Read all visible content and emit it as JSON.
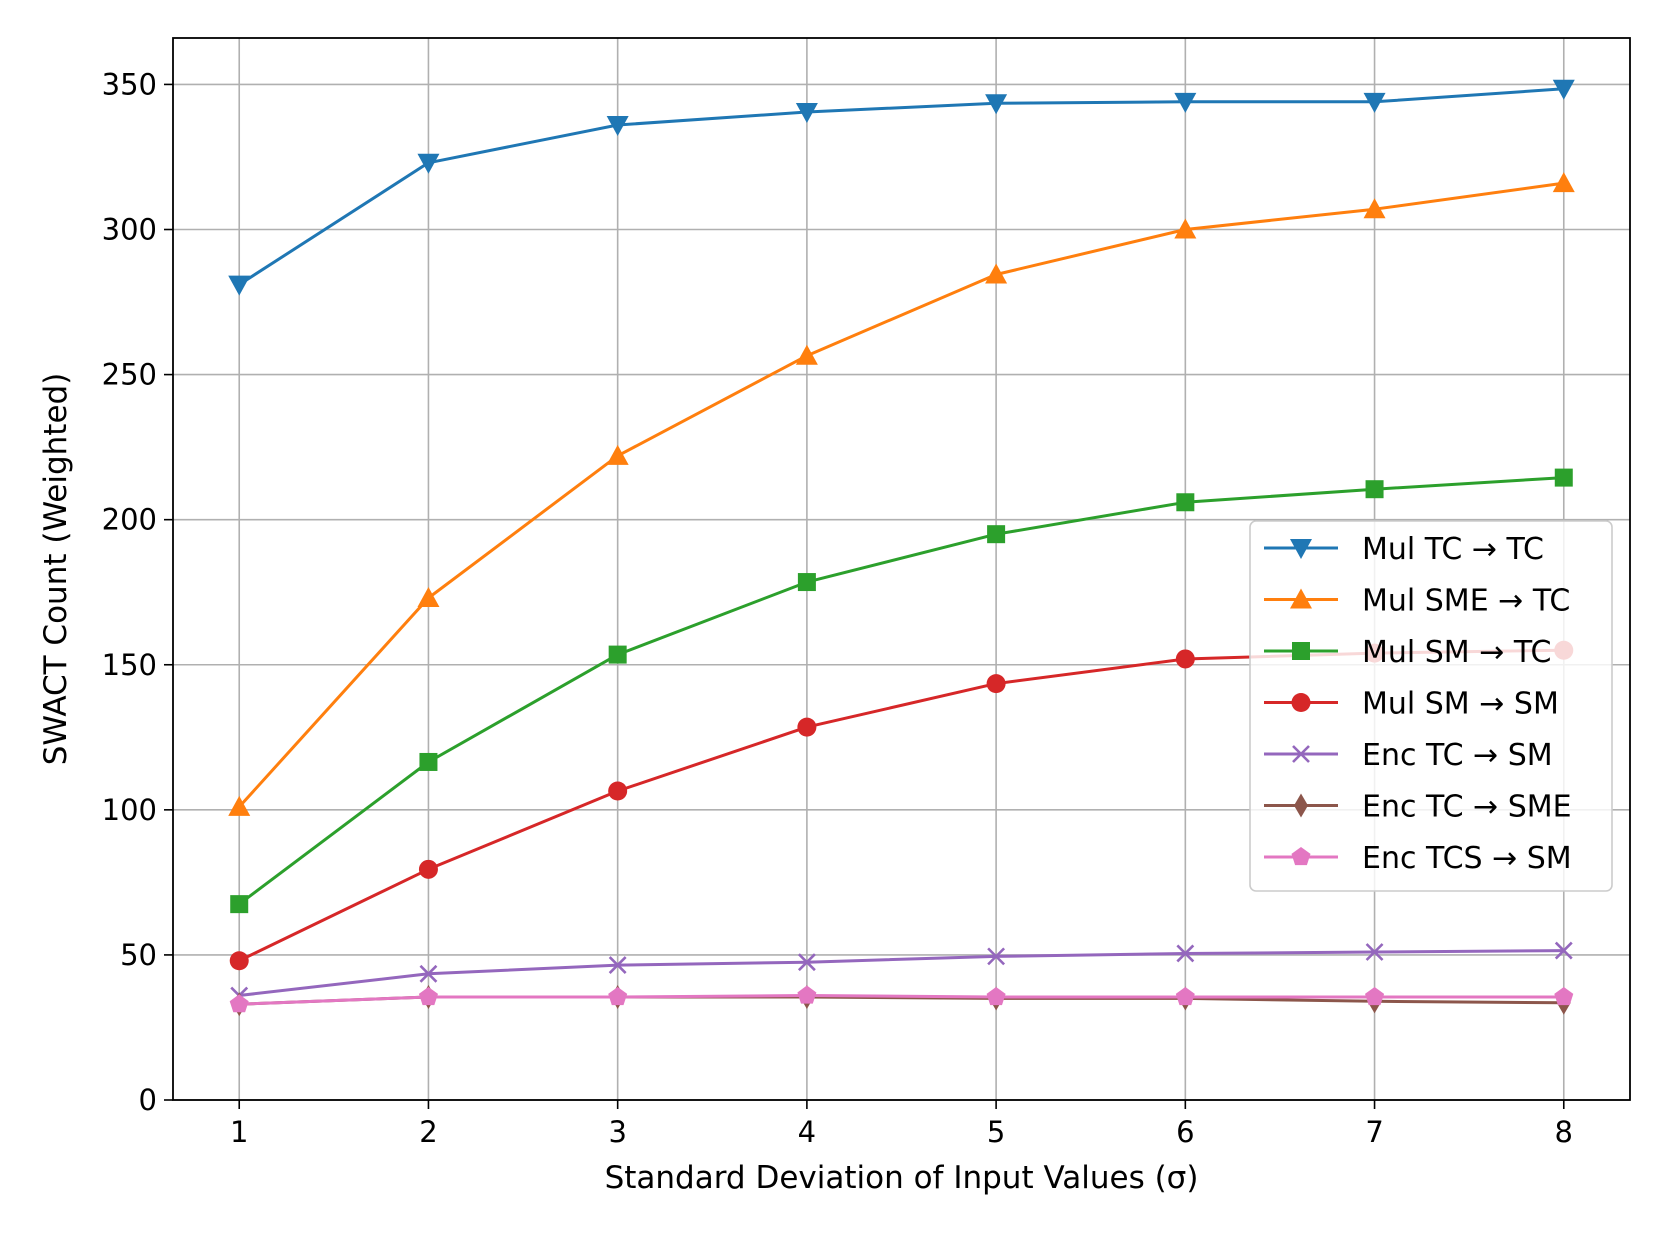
{
  "chart_data": {
    "type": "line",
    "xlabel": "Standard Deviation of Input Values (σ)",
    "ylabel": "SWACT Count (Weighted)",
    "x": [
      1,
      2,
      3,
      4,
      5,
      6,
      7,
      8
    ],
    "xlim": [
      0.65,
      8.35
    ],
    "ylim": [
      0,
      366
    ],
    "xticks": [
      1,
      2,
      3,
      4,
      5,
      6,
      7,
      8
    ],
    "yticks": [
      0,
      50,
      100,
      150,
      200,
      250,
      300,
      350
    ],
    "grid": true,
    "legend_position": "center-right",
    "series": [
      {
        "name": "Mul TC → TC",
        "color": "#1f77b4",
        "marker": "triangle-down",
        "values": [
          281,
          323,
          336,
          340.5,
          343.5,
          344,
          344,
          348.5
        ]
      },
      {
        "name": "Mul SME → TC",
        "color": "#ff7f0e",
        "marker": "triangle-up",
        "values": [
          101,
          173,
          222,
          256.5,
          284.5,
          300,
          307,
          316
        ]
      },
      {
        "name": "Mul SM → TC",
        "color": "#2ca02c",
        "marker": "square",
        "values": [
          67.5,
          116.5,
          153.5,
          178.5,
          195,
          206,
          210.5,
          214.5
        ]
      },
      {
        "name": "Mul SM → SM",
        "color": "#d62728",
        "marker": "circle",
        "values": [
          48,
          79.5,
          106.5,
          128.5,
          143.5,
          152,
          154,
          155
        ]
      },
      {
        "name": "Enc TC → SM",
        "color": "#9467bd",
        "marker": "x",
        "values": [
          36,
          43.5,
          46.5,
          47.5,
          49.5,
          50.5,
          51,
          51.5
        ]
      },
      {
        "name": "Enc TC → SME",
        "color": "#8c564b",
        "marker": "thin-diamond",
        "values": [
          33,
          35.5,
          35.5,
          35.5,
          35,
          35,
          34,
          33.5
        ]
      },
      {
        "name": "Enc TCS → SM",
        "color": "#e377c2",
        "marker": "pentagon",
        "values": [
          33,
          35.5,
          35.5,
          36,
          35.5,
          35.5,
          35.5,
          35.5
        ]
      }
    ]
  }
}
